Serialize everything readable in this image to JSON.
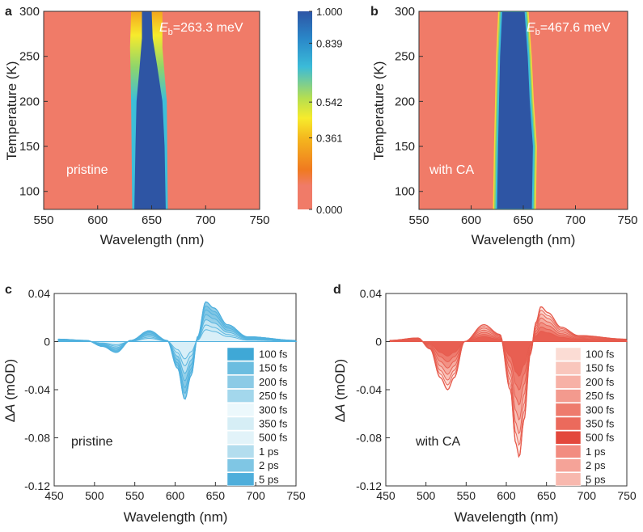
{
  "chart_data": [
    {
      "panel": "a",
      "type": "heatmap",
      "xlabel": "Wavelength (nm)",
      "ylabel": "Temperature (K)",
      "xlim": [
        550,
        750
      ],
      "ylim": [
        80,
        300
      ],
      "xticks": [
        "550",
        "600",
        "650",
        "700",
        "750"
      ],
      "yticks": [
        "100",
        "150",
        "200",
        "250",
        "300"
      ],
      "annotation_symbol": "E",
      "annotation_sub": "b",
      "annotation_value": "=263.3 meV",
      "sample_label": "pristine",
      "band": [
        {
          "T": 80,
          "left": 634,
          "right": 663
        },
        {
          "T": 150,
          "left": 635,
          "right": 662
        },
        {
          "T": 200,
          "left": 636,
          "right": 660
        },
        {
          "T": 240,
          "left": 639,
          "right": 655
        },
        {
          "T": 270,
          "left": 641,
          "right": 651
        },
        {
          "T": 300,
          "left": 641,
          "right": 650
        }
      ],
      "glow": [
        {
          "T": 80,
          "left": 632,
          "right": 665
        },
        {
          "T": 200,
          "left": 631,
          "right": 664
        },
        {
          "T": 260,
          "left": 630,
          "right": 660
        },
        {
          "T": 300,
          "left": 631,
          "right": 660
        }
      ]
    },
    {
      "panel": "b",
      "type": "heatmap",
      "xlabel": "Wavelength (nm)",
      "ylabel": "Temperature (K)",
      "xlim": [
        550,
        750
      ],
      "ylim": [
        80,
        300
      ],
      "xticks": [
        "550",
        "600",
        "650",
        "700",
        "750"
      ],
      "yticks": [
        "100",
        "150",
        "200",
        "250",
        "300"
      ],
      "annotation_symbol": "E",
      "annotation_sub": "b",
      "annotation_value": "=467.6 meV",
      "sample_label": "with CA",
      "band": [
        {
          "T": 80,
          "left": 624,
          "right": 659
        },
        {
          "T": 150,
          "left": 625,
          "right": 660
        },
        {
          "T": 200,
          "left": 626,
          "right": 657
        },
        {
          "T": 250,
          "left": 627,
          "right": 655
        },
        {
          "T": 300,
          "left": 629,
          "right": 652
        }
      ]
    },
    {
      "panel": "colorbar",
      "type": "colorbar",
      "tick_labels": [
        "1.000",
        "0.839",
        "0.542",
        "0.361",
        "0.000"
      ],
      "tick_values": [
        1.0,
        0.839,
        0.542,
        0.361,
        0.0
      ]
    },
    {
      "panel": "c",
      "type": "area",
      "xlabel": "Wavelength (nm)",
      "ylabel_symbol": "Δ",
      "ylabel_var": "A",
      "ylabel_unit": " (mOD)",
      "xlim": [
        450,
        750
      ],
      "ylim": [
        -0.12,
        0.04
      ],
      "xticks": [
        "450",
        "500",
        "550",
        "600",
        "650",
        "700",
        "750"
      ],
      "yticks": [
        "0.04",
        "0",
        "-0.04",
        "-0.08",
        "-0.12"
      ],
      "sample_label": "pristine",
      "legend": [
        "100 fs",
        "150 fs",
        "200 fs",
        "250 fs",
        "300 fs",
        "350 fs",
        "500 fs",
        "1 ps",
        "2 ps",
        "5 ps"
      ],
      "legend_colors": [
        "#3fa8d6",
        "#6bbde0",
        "#8ccbe6",
        "#a3d7ec",
        "#ecf8fc",
        "#d6eef6",
        "#e2f3f9",
        "#b3ddee",
        "#7fc6e4",
        "#4faedb"
      ],
      "envelope_color": "#4fb0de",
      "envelope": [
        {
          "x": 455,
          "y": 0.002
        },
        {
          "x": 490,
          "y": 0.001
        },
        {
          "x": 510,
          "y": -0.004
        },
        {
          "x": 527,
          "y": -0.009
        },
        {
          "x": 545,
          "y": 0.001
        },
        {
          "x": 568,
          "y": 0.009
        },
        {
          "x": 590,
          "y": 0.001
        },
        {
          "x": 603,
          "y": -0.022
        },
        {
          "x": 612,
          "y": -0.048
        },
        {
          "x": 620,
          "y": -0.028
        },
        {
          "x": 628,
          "y": 0.004
        },
        {
          "x": 638,
          "y": 0.033
        },
        {
          "x": 648,
          "y": 0.028
        },
        {
          "x": 665,
          "y": 0.014
        },
        {
          "x": 690,
          "y": 0.004
        },
        {
          "x": 750,
          "y": 0.001
        }
      ],
      "curve_scales": [
        1.0,
        0.9,
        0.8,
        0.68,
        0.55,
        0.42,
        0.3
      ]
    },
    {
      "panel": "d",
      "type": "area",
      "xlabel": "Wavelength (nm)",
      "ylabel_symbol": "Δ",
      "ylabel_var": "A",
      "ylabel_unit": " (mOD)",
      "xlim": [
        450,
        750
      ],
      "ylim": [
        -0.12,
        0.04
      ],
      "xticks": [
        "450",
        "500",
        "550",
        "600",
        "650",
        "700",
        "750"
      ],
      "yticks": [
        "0.04",
        "0",
        "-0.04",
        "-0.08",
        "-0.12"
      ],
      "sample_label": "with CA",
      "legend": [
        "100 fs",
        "150 fs",
        "200 fs",
        "250 fs",
        "300 fs",
        "350 fs",
        "500 fs",
        "1 ps",
        "2 ps",
        "5 ps"
      ],
      "legend_colors": [
        "#fbdcd4",
        "#f9c6bc",
        "#f7b1a6",
        "#f39a8e",
        "#ee7b6d",
        "#eb6a5c",
        "#e3483c",
        "#f28c80",
        "#f5a398",
        "#f8b8ae"
      ],
      "envelope_color": "#e65a4c",
      "envelope": [
        {
          "x": 455,
          "y": 0.001
        },
        {
          "x": 490,
          "y": 0.003
        },
        {
          "x": 505,
          "y": -0.006
        },
        {
          "x": 518,
          "y": -0.03
        },
        {
          "x": 527,
          "y": -0.04
        },
        {
          "x": 535,
          "y": -0.03
        },
        {
          "x": 548,
          "y": 0.0
        },
        {
          "x": 572,
          "y": 0.014
        },
        {
          "x": 592,
          "y": 0.006
        },
        {
          "x": 605,
          "y": -0.04
        },
        {
          "x": 612,
          "y": -0.085
        },
        {
          "x": 616,
          "y": -0.096
        },
        {
          "x": 622,
          "y": -0.065
        },
        {
          "x": 630,
          "y": -0.01
        },
        {
          "x": 637,
          "y": 0.016
        },
        {
          "x": 643,
          "y": 0.029
        },
        {
          "x": 652,
          "y": 0.024
        },
        {
          "x": 668,
          "y": 0.012
        },
        {
          "x": 690,
          "y": 0.005
        },
        {
          "x": 750,
          "y": 0.002
        }
      ],
      "curve_scales": [
        1.0,
        0.9,
        0.8,
        0.68,
        0.55,
        0.42,
        0.3
      ]
    }
  ]
}
